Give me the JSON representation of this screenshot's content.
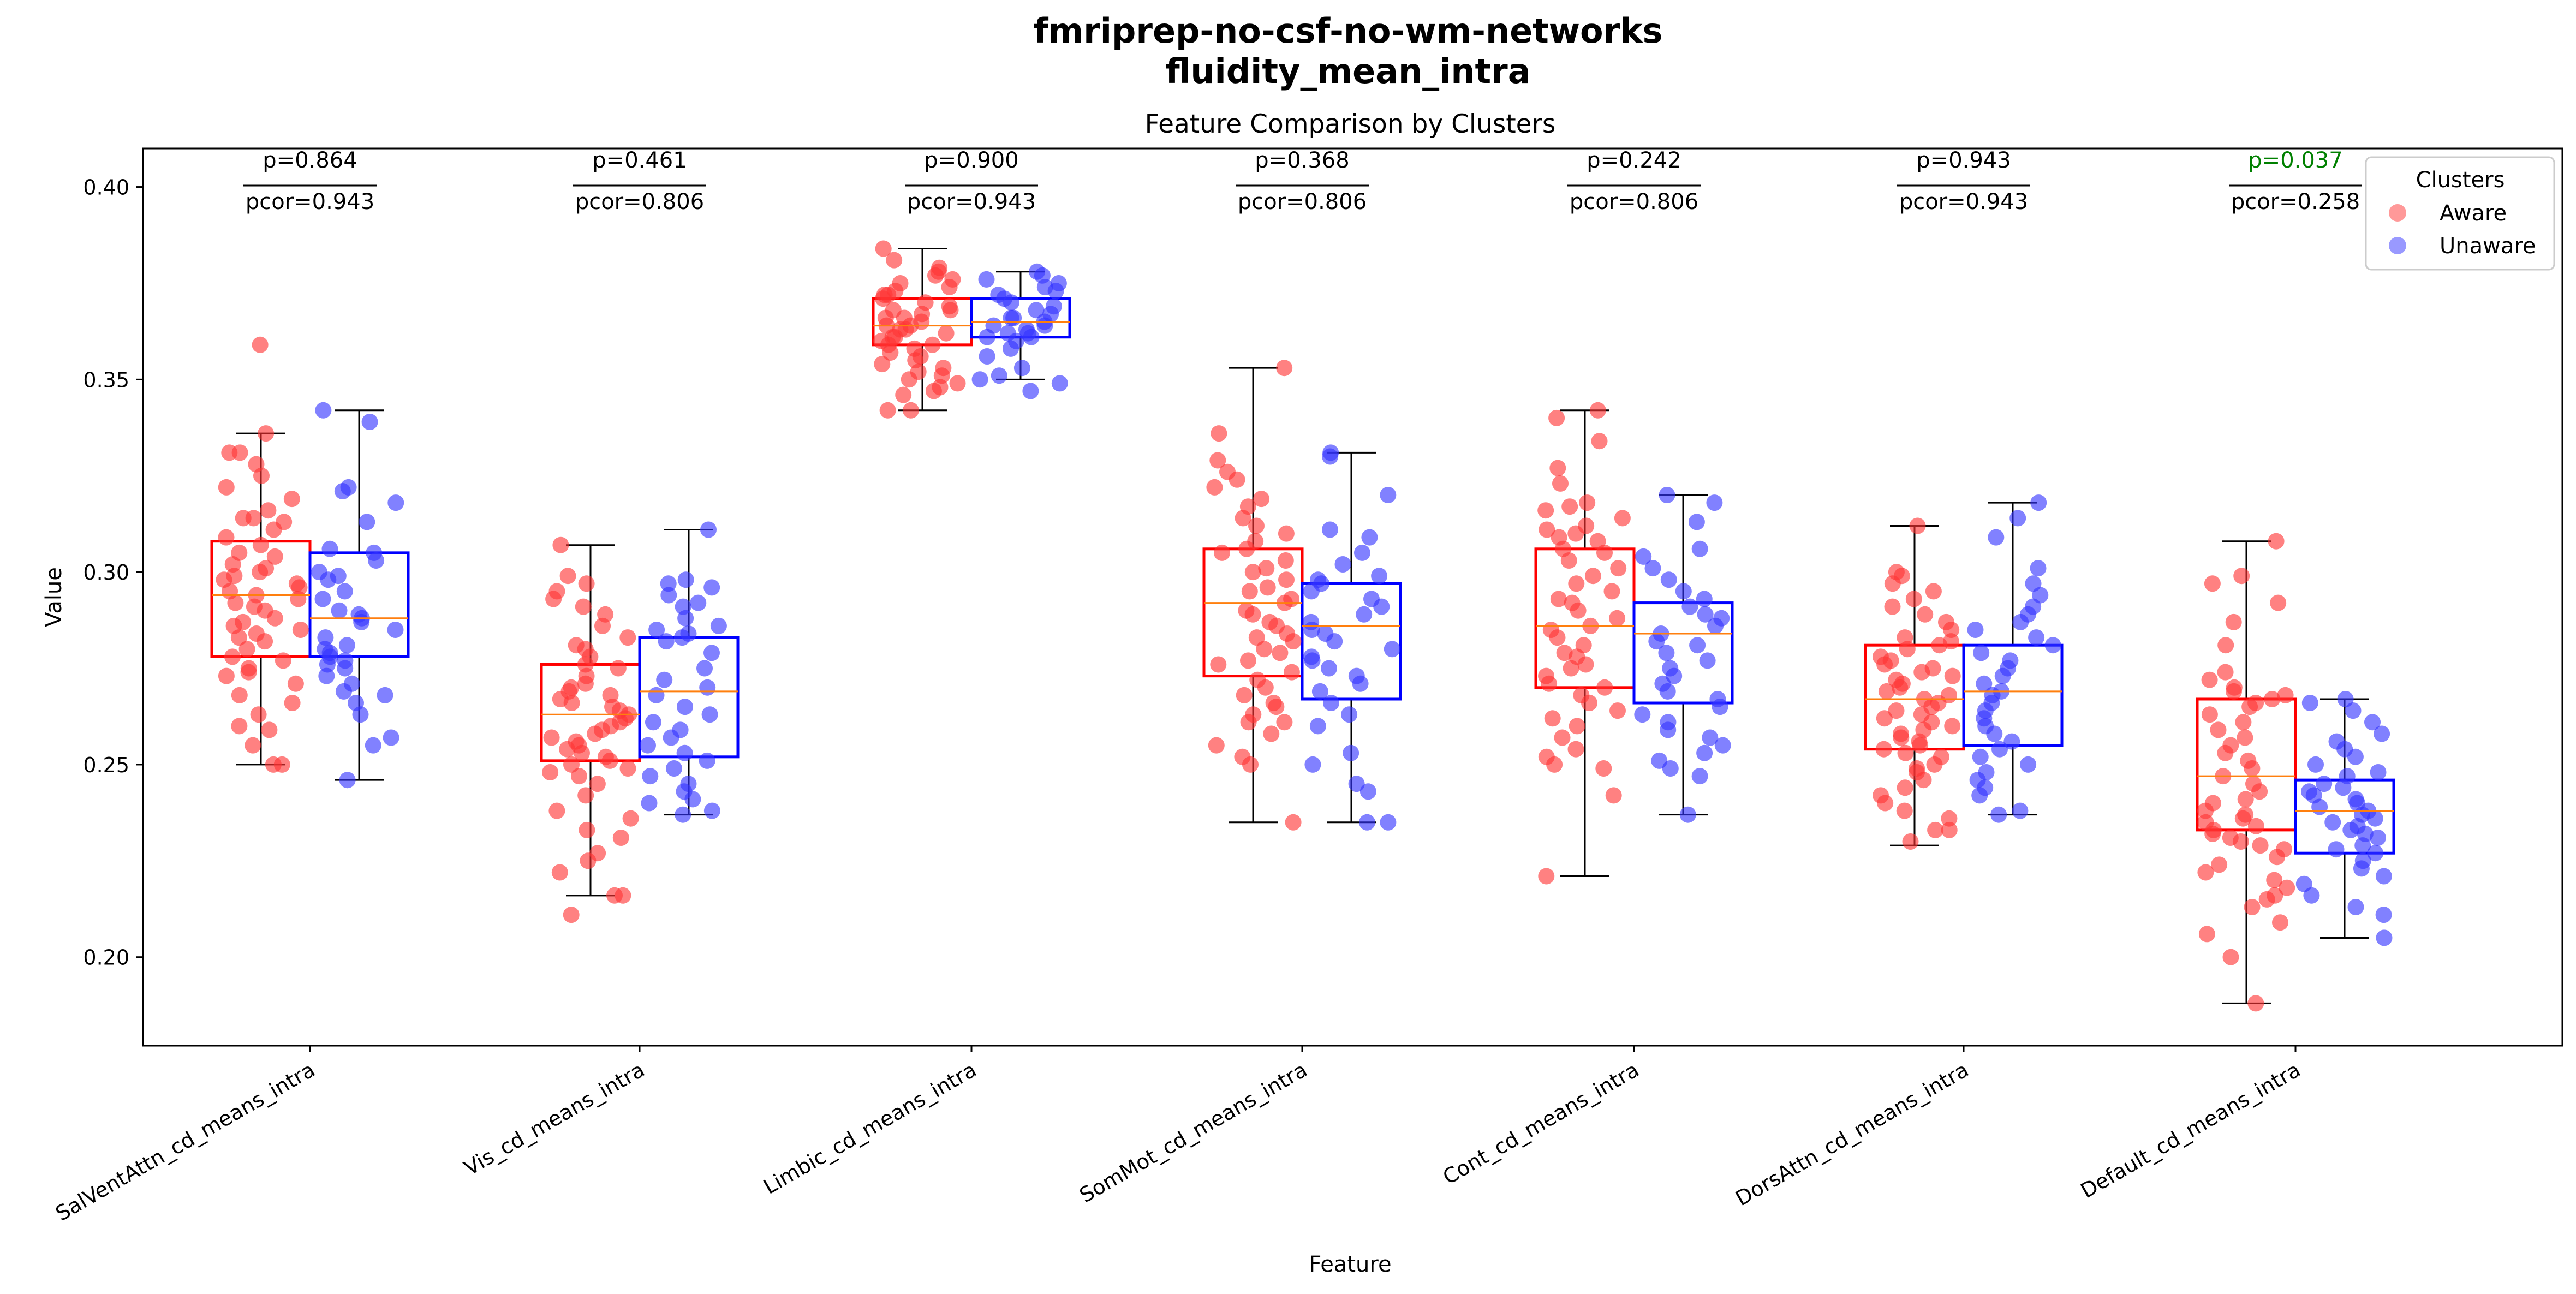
{
  "figure": {
    "suptitle_line1": "fmriprep-no-csf-no-wm-networks",
    "suptitle_line2": "fluidity_mean_intra"
  },
  "chart_data": {
    "type": "box",
    "title": "Feature Comparison by Clusters",
    "xlabel": "Feature",
    "ylabel": "Value",
    "ylim": [
      0.177,
      0.41
    ],
    "yticks": [
      0.2,
      0.25,
      0.3,
      0.35,
      0.4
    ],
    "ytick_labels": [
      "0.20",
      "0.25",
      "0.30",
      "0.35",
      "0.40"
    ],
    "grid": false,
    "legend": {
      "title": "Clusters",
      "placement": "top-right",
      "entries": [
        {
          "label": "Aware",
          "color": "#ff9999"
        },
        {
          "label": "Unaware",
          "color": "#9999ff"
        }
      ]
    },
    "colors": {
      "aware": "#ff0000",
      "unaware": "#0000ff",
      "median": "#ff7f0e",
      "whisker": "#000000",
      "significant": "#008000"
    },
    "categories": [
      "SalVentAttn_cd_means_intra",
      "Vis_cd_means_intra",
      "Limbic_cd_means_intra",
      "SomMot_cd_means_intra",
      "Cont_cd_means_intra",
      "DorsAttn_cd_means_intra",
      "Default_cd_means_intra"
    ],
    "annotations": [
      {
        "p": "p=0.864",
        "pcor": "pcor=0.943",
        "significant": false
      },
      {
        "p": "p=0.461",
        "pcor": "pcor=0.806",
        "significant": false
      },
      {
        "p": "p=0.900",
        "pcor": "pcor=0.943",
        "significant": false
      },
      {
        "p": "p=0.368",
        "pcor": "pcor=0.806",
        "significant": false
      },
      {
        "p": "p=0.242",
        "pcor": "pcor=0.806",
        "significant": false
      },
      {
        "p": "p=0.943",
        "pcor": "pcor=0.943",
        "significant": false
      },
      {
        "p": "p=0.037",
        "pcor": "pcor=0.258",
        "significant": true
      }
    ],
    "series": [
      {
        "name": "Aware",
        "boxes": [
          {
            "whislo": 0.25,
            "q1": 0.278,
            "med": 0.294,
            "q3": 0.308,
            "whishi": 0.336
          },
          {
            "whislo": 0.216,
            "q1": 0.251,
            "med": 0.263,
            "q3": 0.276,
            "whishi": 0.307
          },
          {
            "whislo": 0.342,
            "q1": 0.359,
            "med": 0.364,
            "q3": 0.371,
            "whishi": 0.384
          },
          {
            "whislo": 0.235,
            "q1": 0.273,
            "med": 0.292,
            "q3": 0.306,
            "whishi": 0.353
          },
          {
            "whislo": 0.221,
            "q1": 0.27,
            "med": 0.286,
            "q3": 0.306,
            "whishi": 0.342
          },
          {
            "whislo": 0.229,
            "q1": 0.254,
            "med": 0.267,
            "q3": 0.281,
            "whishi": 0.312
          },
          {
            "whislo": 0.188,
            "q1": 0.233,
            "med": 0.247,
            "q3": 0.267,
            "whishi": 0.308
          }
        ],
        "points": [
          [
            0.359,
            0.336,
            0.331,
            0.331,
            0.328,
            0.325,
            0.322,
            0.319,
            0.316,
            0.314,
            0.314,
            0.313,
            0.311,
            0.309,
            0.307,
            0.305,
            0.304,
            0.302,
            0.301,
            0.3,
            0.299,
            0.298,
            0.297,
            0.296,
            0.295,
            0.294,
            0.293,
            0.292,
            0.291,
            0.29,
            0.288,
            0.287,
            0.286,
            0.285,
            0.284,
            0.283,
            0.282,
            0.28,
            0.278,
            0.277,
            0.275,
            0.274,
            0.273,
            0.271,
            0.268,
            0.266,
            0.263,
            0.26,
            0.259,
            0.255,
            0.25,
            0.25
          ],
          [
            0.307,
            0.299,
            0.297,
            0.295,
            0.293,
            0.291,
            0.289,
            0.286,
            0.283,
            0.281,
            0.28,
            0.278,
            0.276,
            0.275,
            0.273,
            0.271,
            0.27,
            0.269,
            0.268,
            0.267,
            0.266,
            0.265,
            0.264,
            0.263,
            0.262,
            0.261,
            0.26,
            0.259,
            0.258,
            0.257,
            0.256,
            0.255,
            0.254,
            0.253,
            0.252,
            0.251,
            0.25,
            0.249,
            0.248,
            0.247,
            0.245,
            0.242,
            0.238,
            0.236,
            0.233,
            0.231,
            0.227,
            0.225,
            0.222,
            0.216,
            0.216,
            0.211
          ],
          [
            0.384,
            0.381,
            0.379,
            0.378,
            0.377,
            0.376,
            0.375,
            0.374,
            0.373,
            0.372,
            0.372,
            0.371,
            0.37,
            0.369,
            0.368,
            0.368,
            0.367,
            0.366,
            0.366,
            0.365,
            0.364,
            0.364,
            0.363,
            0.363,
            0.362,
            0.361,
            0.361,
            0.36,
            0.359,
            0.359,
            0.358,
            0.357,
            0.356,
            0.355,
            0.354,
            0.353,
            0.352,
            0.351,
            0.35,
            0.349,
            0.348,
            0.347,
            0.346,
            0.342,
            0.342
          ],
          [
            0.353,
            0.336,
            0.329,
            0.326,
            0.324,
            0.322,
            0.319,
            0.317,
            0.314,
            0.312,
            0.31,
            0.308,
            0.306,
            0.305,
            0.303,
            0.301,
            0.3,
            0.298,
            0.296,
            0.295,
            0.293,
            0.292,
            0.29,
            0.289,
            0.287,
            0.286,
            0.284,
            0.283,
            0.282,
            0.28,
            0.279,
            0.277,
            0.276,
            0.274,
            0.272,
            0.27,
            0.268,
            0.266,
            0.265,
            0.263,
            0.261,
            0.261,
            0.258,
            0.255,
            0.252,
            0.25,
            0.235
          ],
          [
            0.342,
            0.34,
            0.334,
            0.327,
            0.323,
            0.318,
            0.317,
            0.316,
            0.314,
            0.312,
            0.311,
            0.31,
            0.309,
            0.308,
            0.306,
            0.305,
            0.303,
            0.301,
            0.299,
            0.297,
            0.295,
            0.293,
            0.292,
            0.29,
            0.288,
            0.286,
            0.285,
            0.283,
            0.281,
            0.279,
            0.278,
            0.276,
            0.275,
            0.273,
            0.271,
            0.27,
            0.268,
            0.266,
            0.264,
            0.262,
            0.26,
            0.257,
            0.254,
            0.252,
            0.25,
            0.249,
            0.242,
            0.221
          ],
          [
            0.312,
            0.3,
            0.299,
            0.297,
            0.295,
            0.293,
            0.291,
            0.289,
            0.287,
            0.285,
            0.283,
            0.282,
            0.281,
            0.28,
            0.278,
            0.277,
            0.276,
            0.275,
            0.274,
            0.273,
            0.272,
            0.271,
            0.27,
            0.269,
            0.268,
            0.267,
            0.266,
            0.265,
            0.264,
            0.263,
            0.262,
            0.261,
            0.26,
            0.259,
            0.258,
            0.257,
            0.256,
            0.255,
            0.254,
            0.253,
            0.252,
            0.25,
            0.249,
            0.248,
            0.246,
            0.244,
            0.242,
            0.24,
            0.238,
            0.236,
            0.233,
            0.233,
            0.23
          ],
          [
            0.308,
            0.299,
            0.297,
            0.292,
            0.287,
            0.281,
            0.274,
            0.272,
            0.27,
            0.269,
            0.268,
            0.267,
            0.266,
            0.265,
            0.263,
            0.261,
            0.259,
            0.257,
            0.255,
            0.253,
            0.251,
            0.249,
            0.247,
            0.245,
            0.243,
            0.241,
            0.24,
            0.238,
            0.237,
            0.236,
            0.235,
            0.234,
            0.233,
            0.232,
            0.231,
            0.23,
            0.229,
            0.228,
            0.226,
            0.224,
            0.222,
            0.22,
            0.218,
            0.216,
            0.215,
            0.213,
            0.209,
            0.206,
            0.2,
            0.188
          ]
        ]
      },
      {
        "name": "Unaware",
        "boxes": [
          {
            "whislo": 0.246,
            "q1": 0.278,
            "med": 0.288,
            "q3": 0.305,
            "whishi": 0.342
          },
          {
            "whislo": 0.237,
            "q1": 0.252,
            "med": 0.269,
            "q3": 0.283,
            "whishi": 0.311
          },
          {
            "whislo": 0.35,
            "q1": 0.361,
            "med": 0.365,
            "q3": 0.371,
            "whishi": 0.378
          },
          {
            "whislo": 0.235,
            "q1": 0.267,
            "med": 0.286,
            "q3": 0.297,
            "whishi": 0.331
          },
          {
            "whislo": 0.237,
            "q1": 0.266,
            "med": 0.284,
            "q3": 0.292,
            "whishi": 0.32
          },
          {
            "whislo": 0.237,
            "q1": 0.255,
            "med": 0.269,
            "q3": 0.281,
            "whishi": 0.318
          },
          {
            "whislo": 0.205,
            "q1": 0.227,
            "med": 0.238,
            "q3": 0.246,
            "whishi": 0.267
          }
        ],
        "points": [
          [
            0.342,
            0.339,
            0.322,
            0.321,
            0.318,
            0.313,
            0.306,
            0.305,
            0.303,
            0.3,
            0.299,
            0.298,
            0.295,
            0.293,
            0.29,
            0.289,
            0.288,
            0.287,
            0.285,
            0.283,
            0.281,
            0.28,
            0.279,
            0.278,
            0.277,
            0.276,
            0.275,
            0.273,
            0.271,
            0.269,
            0.268,
            0.266,
            0.263,
            0.257,
            0.255,
            0.246
          ],
          [
            0.311,
            0.298,
            0.297,
            0.296,
            0.294,
            0.292,
            0.291,
            0.288,
            0.286,
            0.285,
            0.284,
            0.283,
            0.282,
            0.279,
            0.275,
            0.272,
            0.27,
            0.268,
            0.265,
            0.263,
            0.261,
            0.259,
            0.257,
            0.255,
            0.253,
            0.251,
            0.249,
            0.247,
            0.245,
            0.243,
            0.241,
            0.24,
            0.238,
            0.237
          ],
          [
            0.378,
            0.377,
            0.376,
            0.375,
            0.374,
            0.373,
            0.372,
            0.371,
            0.37,
            0.369,
            0.368,
            0.367,
            0.366,
            0.366,
            0.365,
            0.364,
            0.364,
            0.363,
            0.362,
            0.362,
            0.361,
            0.361,
            0.36,
            0.358,
            0.356,
            0.353,
            0.351,
            0.35,
            0.349,
            0.347
          ],
          [
            0.331,
            0.33,
            0.32,
            0.311,
            0.309,
            0.305,
            0.302,
            0.299,
            0.298,
            0.297,
            0.295,
            0.293,
            0.291,
            0.289,
            0.287,
            0.285,
            0.284,
            0.282,
            0.28,
            0.278,
            0.277,
            0.275,
            0.273,
            0.271,
            0.269,
            0.266,
            0.263,
            0.26,
            0.253,
            0.25,
            0.245,
            0.243,
            0.235,
            0.235
          ],
          [
            0.32,
            0.318,
            0.313,
            0.306,
            0.304,
            0.301,
            0.298,
            0.295,
            0.293,
            0.291,
            0.289,
            0.288,
            0.286,
            0.284,
            0.282,
            0.281,
            0.279,
            0.277,
            0.275,
            0.273,
            0.271,
            0.269,
            0.267,
            0.265,
            0.263,
            0.261,
            0.259,
            0.257,
            0.255,
            0.253,
            0.251,
            0.249,
            0.247,
            0.237
          ],
          [
            0.318,
            0.314,
            0.309,
            0.301,
            0.297,
            0.294,
            0.291,
            0.289,
            0.287,
            0.285,
            0.283,
            0.281,
            0.279,
            0.277,
            0.275,
            0.273,
            0.271,
            0.269,
            0.268,
            0.266,
            0.264,
            0.262,
            0.26,
            0.258,
            0.256,
            0.254,
            0.252,
            0.25,
            0.248,
            0.246,
            0.244,
            0.242,
            0.238,
            0.237
          ],
          [
            0.267,
            0.266,
            0.264,
            0.261,
            0.258,
            0.256,
            0.254,
            0.252,
            0.25,
            0.248,
            0.247,
            0.245,
            0.244,
            0.243,
            0.242,
            0.241,
            0.24,
            0.239,
            0.238,
            0.237,
            0.236,
            0.235,
            0.234,
            0.233,
            0.232,
            0.231,
            0.229,
            0.228,
            0.227,
            0.225,
            0.223,
            0.221,
            0.219,
            0.216,
            0.213,
            0.211,
            0.205
          ]
        ]
      }
    ]
  }
}
